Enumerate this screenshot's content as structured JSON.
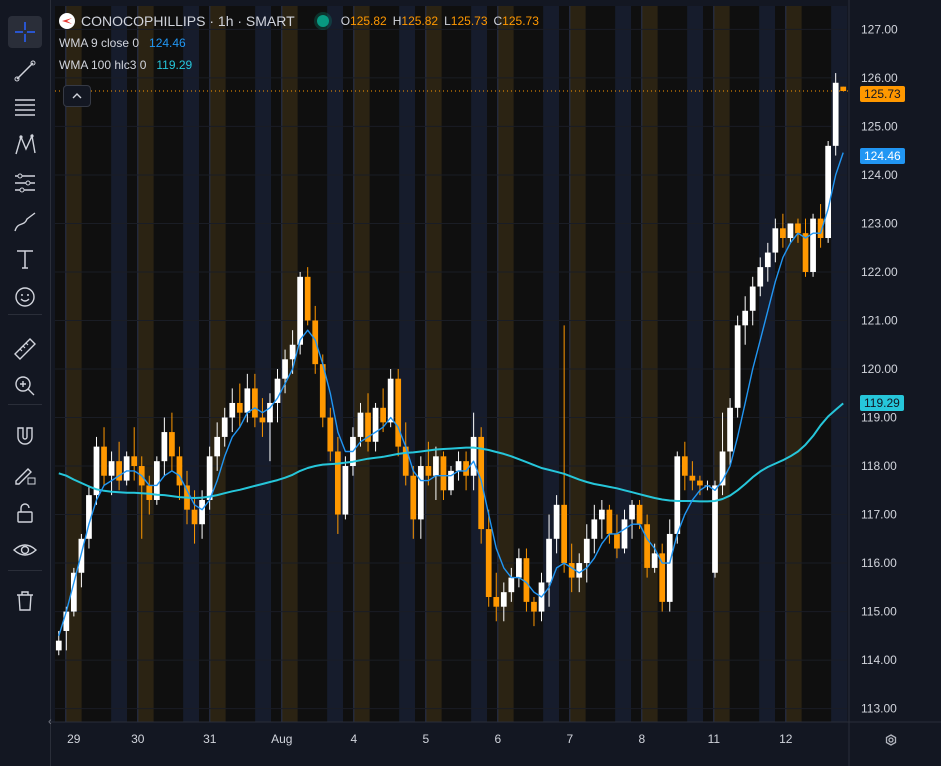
{
  "toolbar": {
    "tools": [
      {
        "name": "crosshair-icon",
        "label": "Crosshair"
      },
      {
        "name": "trend-line-icon",
        "label": "Trend line"
      },
      {
        "name": "horizontal-lines-icon",
        "label": "Lines"
      },
      {
        "name": "pattern-icon",
        "label": "Patterns"
      },
      {
        "name": "fib-icon",
        "label": "Fibonacci"
      },
      {
        "name": "brush-icon",
        "label": "Brush"
      },
      {
        "name": "text-icon",
        "label": "Text"
      },
      {
        "name": "smiley-icon",
        "label": "Icons"
      },
      {
        "name": "ruler-icon",
        "label": "Measure"
      },
      {
        "name": "zoom-in-icon",
        "label": "Zoom in"
      },
      {
        "name": "magnet-icon",
        "label": "Magnet"
      },
      {
        "name": "lock-pencil-icon",
        "label": "Lock drawings"
      },
      {
        "name": "unlock-icon",
        "label": "Lock all"
      },
      {
        "name": "eye-icon",
        "label": "Hide"
      },
      {
        "name": "trash-icon",
        "label": "Remove"
      }
    ]
  },
  "legend": {
    "symbol_title": "CONOCOPHILLIPS · 1h · SMART",
    "ohlc": [
      {
        "k": "O",
        "v": "125.82"
      },
      {
        "k": "H",
        "v": "125.82"
      },
      {
        "k": "L",
        "v": "125.73"
      },
      {
        "k": "C",
        "v": "125.73"
      }
    ],
    "indicators": [
      {
        "label": "WMA 9 close 0",
        "value": "124.46",
        "color": "#2196f3"
      },
      {
        "label": "WMA 100 hlc3 0",
        "value": "119.29",
        "color": "#26c6da"
      }
    ]
  },
  "price_axis": {
    "ticks": [
      "127.00",
      "126.00",
      "125.00",
      "124.00",
      "123.00",
      "122.00",
      "121.00",
      "120.00",
      "119.00",
      "118.00",
      "117.00",
      "116.00",
      "115.00",
      "114.00",
      "113.00"
    ],
    "last_price": "125.73",
    "wma9_value": "124.46",
    "wma100_value": "119.29"
  },
  "time_axis": {
    "labels": [
      "29",
      "30",
      "31",
      "Aug",
      "4",
      "5",
      "6",
      "7",
      "8",
      "11",
      "12"
    ]
  },
  "colors": {
    "bg": "#131722",
    "up": "#ffffff",
    "down": "#ff9800",
    "wma9": "#2196f3",
    "wma100": "#26c6da",
    "premarket": "#2b2313",
    "postmarket": "#161c2c"
  },
  "chart_data": {
    "type": "candlestick",
    "symbol": "CONOCOPHILLIPS",
    "timeframe": "1h",
    "ylim": [
      112.6,
      127.4
    ],
    "days": [
      "29",
      "30",
      "31",
      "Aug",
      "4",
      "5",
      "6",
      "7",
      "8",
      "11",
      "12"
    ],
    "candles": [
      [
        114.2,
        114.6,
        114.1,
        114.4
      ],
      [
        114.6,
        115.1,
        114.2,
        115.0
      ],
      [
        115.0,
        115.9,
        114.9,
        115.8
      ],
      [
        115.8,
        116.6,
        115.5,
        116.5
      ],
      [
        116.5,
        117.6,
        116.3,
        117.4
      ],
      [
        117.4,
        118.6,
        117.2,
        118.4
      ],
      [
        118.4,
        118.8,
        117.6,
        117.8
      ],
      [
        117.8,
        118.3,
        117.4,
        118.1
      ],
      [
        118.1,
        118.5,
        117.5,
        117.7
      ],
      [
        117.7,
        118.3,
        117.6,
        118.2
      ],
      [
        118.2,
        118.8,
        117.7,
        118.0
      ],
      [
        118.0,
        118.2,
        116.5,
        117.6
      ],
      [
        117.6,
        117.8,
        117.0,
        117.3
      ],
      [
        117.3,
        118.2,
        117.2,
        118.1
      ],
      [
        118.1,
        119.0,
        117.8,
        118.7
      ],
      [
        118.7,
        119.1,
        117.9,
        118.2
      ],
      [
        118.2,
        118.4,
        117.3,
        117.6
      ],
      [
        117.6,
        117.9,
        116.8,
        117.1
      ],
      [
        117.1,
        117.5,
        116.4,
        116.8
      ],
      [
        116.8,
        117.5,
        116.5,
        117.3
      ],
      [
        117.3,
        118.4,
        117.1,
        118.2
      ],
      [
        118.2,
        118.9,
        117.9,
        118.6
      ],
      [
        118.6,
        119.2,
        118.4,
        119.0
      ],
      [
        119.0,
        119.6,
        118.7,
        119.3
      ],
      [
        119.3,
        119.7,
        118.8,
        119.1
      ],
      [
        119.1,
        119.9,
        118.9,
        119.6
      ],
      [
        119.6,
        119.9,
        118.8,
        119.0
      ],
      [
        119.0,
        119.4,
        118.6,
        118.9
      ],
      [
        118.9,
        119.5,
        118.1,
        119.3
      ],
      [
        119.3,
        120.0,
        118.9,
        119.8
      ],
      [
        119.8,
        120.4,
        119.5,
        120.2
      ],
      [
        120.2,
        120.8,
        119.9,
        120.5
      ],
      [
        120.5,
        122.0,
        120.3,
        121.9
      ],
      [
        121.9,
        122.1,
        120.9,
        121.0
      ],
      [
        121.0,
        121.3,
        119.9,
        120.1
      ],
      [
        120.1,
        120.3,
        118.8,
        119.0
      ],
      [
        119.0,
        119.2,
        118.1,
        118.3
      ],
      [
        118.3,
        118.6,
        116.6,
        117.0
      ],
      [
        117.0,
        118.2,
        116.9,
        118.0
      ],
      [
        118.0,
        118.8,
        117.8,
        118.6
      ],
      [
        118.6,
        119.3,
        118.4,
        119.1
      ],
      [
        119.1,
        119.5,
        118.3,
        118.5
      ],
      [
        118.5,
        119.3,
        118.3,
        119.2
      ],
      [
        119.2,
        119.6,
        118.7,
        118.9
      ],
      [
        118.9,
        120.0,
        118.8,
        119.8
      ],
      [
        119.8,
        120.0,
        118.2,
        118.4
      ],
      [
        118.4,
        118.9,
        117.6,
        117.8
      ],
      [
        117.8,
        118.0,
        116.5,
        116.9
      ],
      [
        116.9,
        118.2,
        116.5,
        118.0
      ],
      [
        118.0,
        118.5,
        117.6,
        117.8
      ],
      [
        117.8,
        118.4,
        117.3,
        118.2
      ],
      [
        118.2,
        118.3,
        117.3,
        117.5
      ],
      [
        117.5,
        118.0,
        117.4,
        117.9
      ],
      [
        117.9,
        118.3,
        117.7,
        118.1
      ],
      [
        118.1,
        118.3,
        117.5,
        117.8
      ],
      [
        117.8,
        119.1,
        117.5,
        118.6
      ],
      [
        118.6,
        118.8,
        116.4,
        116.7
      ],
      [
        116.7,
        117.1,
        115.1,
        115.3
      ],
      [
        115.3,
        115.8,
        114.8,
        115.1
      ],
      [
        115.1,
        115.6,
        114.8,
        115.4
      ],
      [
        115.4,
        115.9,
        115.2,
        115.7
      ],
      [
        115.7,
        116.3,
        115.5,
        116.1
      ],
      [
        116.1,
        116.3,
        115.0,
        115.2
      ],
      [
        115.2,
        115.3,
        114.7,
        115.0
      ],
      [
        115.0,
        115.8,
        114.8,
        115.6
      ],
      [
        115.6,
        117.0,
        115.1,
        116.5
      ],
      [
        116.5,
        117.4,
        116.2,
        117.2
      ],
      [
        117.2,
        120.9,
        115.8,
        116.0
      ],
      [
        116.0,
        116.4,
        115.4,
        115.7
      ],
      [
        115.7,
        116.2,
        115.4,
        116.0
      ],
      [
        116.0,
        116.8,
        115.6,
        116.5
      ],
      [
        116.5,
        117.2,
        116.2,
        116.9
      ],
      [
        116.9,
        117.3,
        116.5,
        117.1
      ],
      [
        117.1,
        117.2,
        116.4,
        116.6
      ],
      [
        116.6,
        117.0,
        116.1,
        116.3
      ],
      [
        116.3,
        117.1,
        116.2,
        116.9
      ],
      [
        116.9,
        117.3,
        116.5,
        117.2
      ],
      [
        117.2,
        117.3,
        116.7,
        116.8
      ],
      [
        116.8,
        117.0,
        115.7,
        115.9
      ],
      [
        115.9,
        116.4,
        115.8,
        116.2
      ],
      [
        116.2,
        116.4,
        115.0,
        115.2
      ],
      [
        115.2,
        116.9,
        115.0,
        116.6
      ],
      [
        116.6,
        118.3,
        116.4,
        118.2
      ],
      [
        118.2,
        118.5,
        117.5,
        117.8
      ],
      [
        117.8,
        118.1,
        117.5,
        117.7
      ],
      [
        117.7,
        117.8,
        117.4,
        117.6
      ],
      [
        117.6,
        117.7,
        117.5,
        117.6
      ],
      [
        115.8,
        117.7,
        115.7,
        117.6
      ],
      [
        117.6,
        119.1,
        117.4,
        118.3
      ],
      [
        118.3,
        119.4,
        118.0,
        119.2
      ],
      [
        119.2,
        121.1,
        119.0,
        120.9
      ],
      [
        120.9,
        121.5,
        120.5,
        121.2
      ],
      [
        121.2,
        121.9,
        120.9,
        121.7
      ],
      [
        121.7,
        122.3,
        121.5,
        122.1
      ],
      [
        122.1,
        122.6,
        121.8,
        122.4
      ],
      [
        122.4,
        123.1,
        122.2,
        122.9
      ],
      [
        122.9,
        123.2,
        122.5,
        122.7
      ],
      [
        122.7,
        123.0,
        122.6,
        123.0
      ],
      [
        123.0,
        123.1,
        122.6,
        122.8
      ],
      [
        122.8,
        123.1,
        121.9,
        122.0
      ],
      [
        122.0,
        123.2,
        121.9,
        123.1
      ],
      [
        123.1,
        123.4,
        122.5,
        122.7
      ],
      [
        122.7,
        124.7,
        122.6,
        124.6
      ],
      [
        124.6,
        126.1,
        124.4,
        125.9
      ],
      [
        125.82,
        125.82,
        125.73,
        125.73
      ]
    ],
    "wma9": [
      114.5,
      115.0,
      115.6,
      116.2,
      116.8,
      117.3,
      117.6,
      117.7,
      117.8,
      117.9,
      117.9,
      117.8,
      117.6,
      117.6,
      117.8,
      117.9,
      117.8,
      117.5,
      117.2,
      117.1,
      117.3,
      117.7,
      118.2,
      118.6,
      118.8,
      119.1,
      119.2,
      119.1,
      119.2,
      119.4,
      119.7,
      120.0,
      120.6,
      120.8,
      120.6,
      120.1,
      119.5,
      118.7,
      118.3,
      118.3,
      118.5,
      118.6,
      118.7,
      118.8,
      119.0,
      118.8,
      118.4,
      117.9,
      117.7,
      117.7,
      117.8,
      117.8,
      117.8,
      117.9,
      117.9,
      118.1,
      117.7,
      117.0,
      116.3,
      115.9,
      115.7,
      115.7,
      115.6,
      115.4,
      115.3,
      115.5,
      115.9,
      116.0,
      115.9,
      115.8,
      115.9,
      116.1,
      116.4,
      116.6,
      116.6,
      116.7,
      116.8,
      116.8,
      116.5,
      116.3,
      116.0,
      116.0,
      116.6,
      117.0,
      117.3,
      117.5,
      117.6,
      117.5,
      117.7,
      118.0,
      118.6,
      119.3,
      120.0,
      120.6,
      121.2,
      121.8,
      122.3,
      122.6,
      122.8,
      122.7,
      122.8,
      122.8,
      123.3,
      124.0,
      124.46
    ],
    "wma100": [
      117.85,
      117.8,
      117.72,
      117.65,
      117.58,
      117.52,
      117.49,
      117.47,
      117.46,
      117.45,
      117.45,
      117.44,
      117.43,
      117.41,
      117.4,
      117.38,
      117.36,
      117.35,
      117.34,
      117.35,
      117.37,
      117.4,
      117.44,
      117.48,
      117.51,
      117.55,
      117.59,
      117.63,
      117.67,
      117.71,
      117.76,
      117.82,
      117.9,
      117.96,
      118.0,
      118.03,
      118.04,
      118.05,
      118.07,
      118.09,
      118.12,
      118.15,
      118.17,
      118.19,
      118.22,
      118.25,
      118.27,
      118.28,
      118.3,
      118.32,
      118.34,
      118.35,
      118.36,
      118.37,
      118.38,
      118.38,
      118.36,
      118.33,
      118.29,
      118.25,
      118.2,
      118.14,
      118.08,
      118.02,
      117.96,
      117.92,
      117.88,
      117.84,
      117.78,
      117.72,
      117.67,
      117.63,
      117.6,
      117.57,
      117.54,
      117.5,
      117.46,
      117.42,
      117.38,
      117.34,
      117.31,
      117.29,
      117.28,
      117.28,
      117.28,
      117.27,
      117.27,
      117.28,
      117.32,
      117.39,
      117.5,
      117.63,
      117.77,
      117.89,
      117.98,
      118.05,
      118.12,
      118.2,
      118.3,
      118.44,
      118.62,
      118.84,
      119.02,
      119.16,
      119.29
    ]
  }
}
